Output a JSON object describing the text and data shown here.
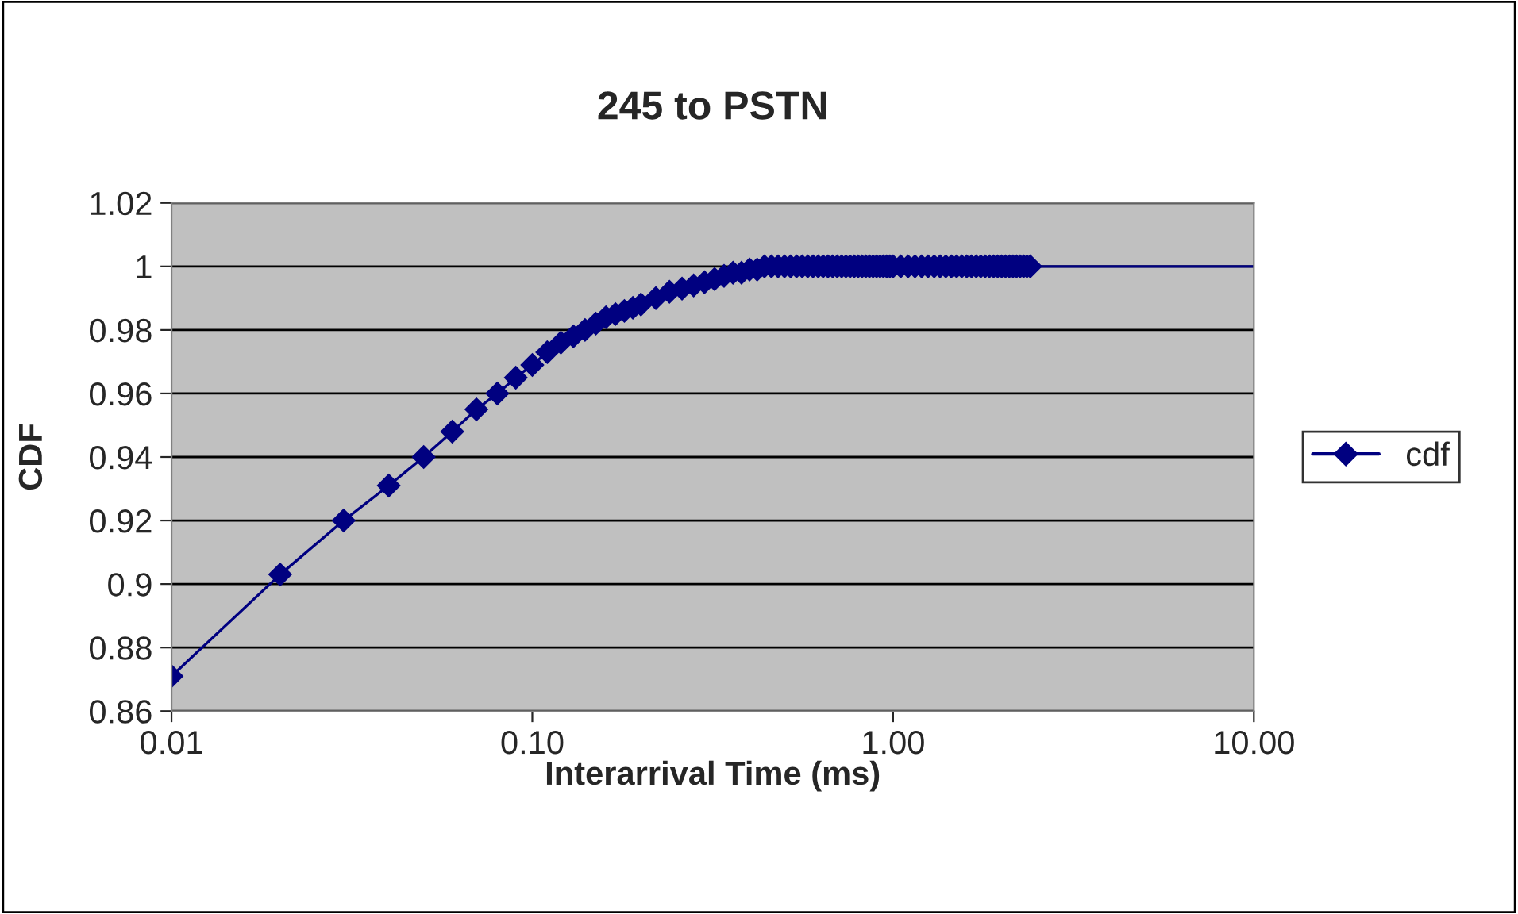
{
  "chart_data": {
    "type": "line",
    "title": "245 to PSTN",
    "xlabel": "Interarrival Time (ms)",
    "ylabel": "CDF",
    "log": "x",
    "xlim": [
      0.01,
      10
    ],
    "xticks": [
      {
        "value": 0.01,
        "label": "0.01"
      },
      {
        "value": 0.1,
        "label": "0.10"
      },
      {
        "value": 1,
        "label": "1.00"
      },
      {
        "value": 10,
        "label": "10.00"
      }
    ],
    "ylim": [
      0.86,
      1.02
    ],
    "yticks": [
      0.86,
      0.88,
      0.9,
      0.92,
      0.94,
      0.96,
      0.98,
      1,
      1.02
    ],
    "grid": "y",
    "legend": "right",
    "marker": "diamond",
    "line_style": "solid",
    "series": [
      {
        "name": "cdf",
        "color": "#000080",
        "x": [
          0.01,
          0.02,
          0.03,
          0.04,
          0.05,
          0.06,
          0.07,
          0.08,
          0.09,
          0.1,
          0.11,
          0.12,
          0.13,
          0.14,
          0.15,
          0.16,
          0.17,
          0.18,
          0.19,
          0.2,
          0.22,
          0.24,
          0.26,
          0.28,
          0.3,
          0.32,
          0.34,
          0.36,
          0.38,
          0.4,
          0.42,
          0.44,
          0.46,
          0.48,
          0.5,
          0.52,
          0.54,
          0.56,
          0.58,
          0.6,
          0.62,
          0.64,
          0.66,
          0.68,
          0.7,
          0.72,
          0.74,
          0.76,
          0.78,
          0.8,
          0.82,
          0.84,
          0.86,
          0.88,
          0.9,
          0.92,
          0.94,
          0.96,
          0.98,
          1.0,
          1.05,
          1.1,
          1.15,
          1.2,
          1.25,
          1.3,
          1.35,
          1.4,
          1.45,
          1.5,
          1.55,
          1.6,
          1.65,
          1.7,
          1.75,
          1.8,
          1.85,
          1.9,
          1.95,
          2.0,
          2.05,
          2.1,
          2.15,
          2.2,
          2.25,
          2.3,
          2.35,
          2.4
        ],
        "values": [
          0.871,
          0.903,
          0.92,
          0.931,
          0.94,
          0.948,
          0.955,
          0.96,
          0.965,
          0.969,
          0.973,
          0.976,
          0.978,
          0.98,
          0.982,
          0.984,
          0.985,
          0.986,
          0.987,
          0.988,
          0.99,
          0.992,
          0.993,
          0.994,
          0.995,
          0.996,
          0.997,
          0.998,
          0.998,
          0.999,
          0.999,
          1,
          1,
          1,
          1,
          1,
          1,
          1,
          1,
          1,
          1,
          1,
          1,
          1,
          1,
          1,
          1,
          1,
          1,
          1,
          1,
          1,
          1,
          1,
          1,
          1,
          1,
          1,
          1,
          1,
          1,
          1,
          1,
          1,
          1,
          1,
          1,
          1,
          1,
          1,
          1,
          1,
          1,
          1,
          1,
          1,
          1,
          1,
          1,
          1,
          1,
          1,
          1,
          1,
          1,
          1,
          1,
          1
        ]
      },
      {
        "color": "#000080",
        "marker": "none",
        "x": [
          2.4,
          10
        ],
        "values": [
          1,
          1
        ]
      }
    ]
  }
}
